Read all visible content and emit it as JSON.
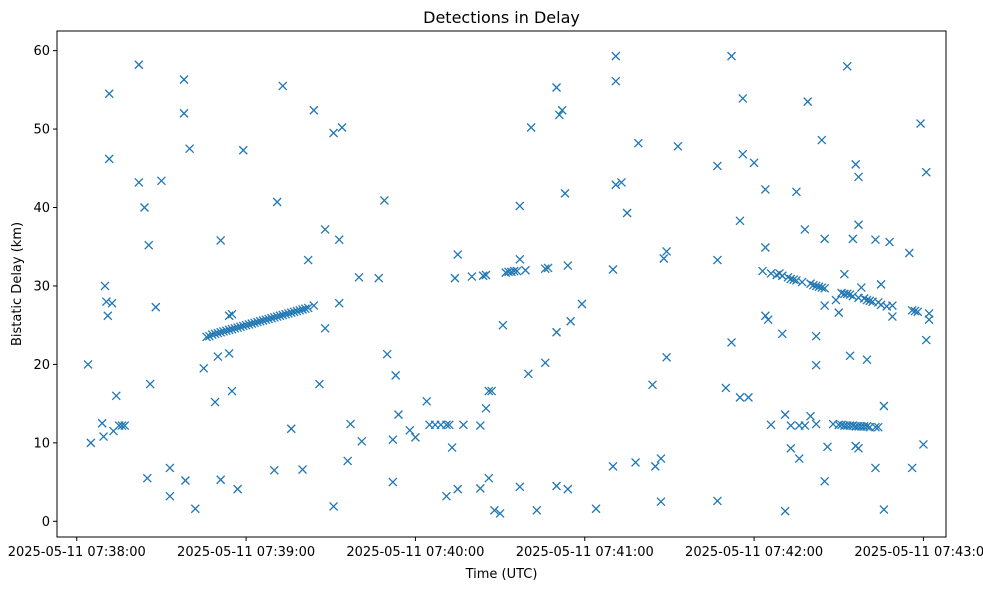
{
  "chart_data": {
    "type": "scatter",
    "title": "Detections in Delay",
    "xlabel": "Time (UTC)",
    "ylabel": "Bistatic Delay (km)",
    "x_unit": "seconds after 2025-05-11 07:38:00 UTC",
    "xlim": [
      -7,
      308
    ],
    "ylim": [
      -2,
      62.5
    ],
    "xticks": [
      {
        "value": 0,
        "label": "2025-05-11 07:38:00"
      },
      {
        "value": 60,
        "label": "2025-05-11 07:39:00"
      },
      {
        "value": 120,
        "label": "2025-05-11 07:40:00"
      },
      {
        "value": 180,
        "label": "2025-05-11 07:41:00"
      },
      {
        "value": 240,
        "label": "2025-05-11 07:42:00"
      },
      {
        "value": 300,
        "label": "2025-05-11 07:43:00"
      }
    ],
    "yticks": [
      {
        "value": 0,
        "label": "0"
      },
      {
        "value": 10,
        "label": "10"
      },
      {
        "value": 20,
        "label": "20"
      },
      {
        "value": 30,
        "label": "30"
      },
      {
        "value": 40,
        "label": "40"
      },
      {
        "value": 50,
        "label": "50"
      },
      {
        "value": 60,
        "label": "60"
      }
    ],
    "marker": "x",
    "grid": false,
    "color": "#1f77b4",
    "series": [
      {
        "name": "detections",
        "points": [
          [
            4,
            20
          ],
          [
            5,
            10
          ],
          [
            9,
            12.5
          ],
          [
            9.5,
            10.8
          ],
          [
            10,
            30
          ],
          [
            10.5,
            28
          ],
          [
            11,
            26.2
          ],
          [
            11.5,
            54.5
          ],
          [
            11.5,
            46.2
          ],
          [
            12.5,
            27.8
          ],
          [
            13,
            11.5
          ],
          [
            14,
            16
          ],
          [
            15,
            12.2
          ],
          [
            16,
            12.2
          ],
          [
            17,
            12.2
          ],
          [
            22,
            58.2
          ],
          [
            22,
            43.2
          ],
          [
            24,
            40
          ],
          [
            25,
            5.5
          ],
          [
            25.5,
            35.2
          ],
          [
            26,
            17.5
          ],
          [
            28,
            27.3
          ],
          [
            30,
            43.4
          ],
          [
            33,
            3.2
          ],
          [
            33,
            6.8
          ],
          [
            38,
            56.3
          ],
          [
            38,
            52
          ],
          [
            38.5,
            5.2
          ],
          [
            40,
            47.5
          ],
          [
            42,
            1.6
          ],
          [
            45,
            19.5
          ],
          [
            46,
            23.5
          ],
          [
            47,
            23.6
          ],
          [
            48,
            23.8
          ],
          [
            49,
            23.9
          ],
          [
            50,
            24
          ],
          [
            51,
            24.1
          ],
          [
            52,
            24.2
          ],
          [
            53,
            24.3
          ],
          [
            54,
            24.4
          ],
          [
            55,
            24.5
          ],
          [
            56,
            24.6
          ],
          [
            57,
            24.7
          ],
          [
            58,
            24.8
          ],
          [
            59,
            24.9
          ],
          [
            60,
            25
          ],
          [
            61,
            25.1
          ],
          [
            62,
            25.2
          ],
          [
            63,
            25.3
          ],
          [
            64,
            25.4
          ],
          [
            65,
            25.5
          ],
          [
            66,
            25.6
          ],
          [
            67,
            25.7
          ],
          [
            68,
            25.8
          ],
          [
            69,
            25.9
          ],
          [
            70,
            26
          ],
          [
            71,
            26.1
          ],
          [
            72,
            26.2
          ],
          [
            73,
            26.3
          ],
          [
            74,
            26.4
          ],
          [
            75,
            26.5
          ],
          [
            76,
            26.6
          ],
          [
            77,
            26.7
          ],
          [
            78,
            26.8
          ],
          [
            79,
            26.9
          ],
          [
            80,
            27
          ],
          [
            81,
            27.1
          ],
          [
            82,
            27.2
          ],
          [
            84,
            27.5
          ],
          [
            49,
            15.2
          ],
          [
            50,
            21
          ],
          [
            51,
            35.8
          ],
          [
            51,
            5.3
          ],
          [
            54,
            21.4
          ],
          [
            54,
            26.2
          ],
          [
            55,
            26.4
          ],
          [
            55,
            16.6
          ],
          [
            57,
            4.1
          ],
          [
            59,
            47.3
          ],
          [
            70,
            6.5
          ],
          [
            71,
            40.7
          ],
          [
            73,
            55.5
          ],
          [
            76,
            11.8
          ],
          [
            80,
            6.6
          ],
          [
            82,
            33.3
          ],
          [
            84,
            52.4
          ],
          [
            86,
            17.5
          ],
          [
            88,
            37.2
          ],
          [
            88,
            24.6
          ],
          [
            91,
            1.9
          ],
          [
            91,
            49.5
          ],
          [
            93,
            27.8
          ],
          [
            93,
            35.9
          ],
          [
            94,
            50.2
          ],
          [
            96,
            7.7
          ],
          [
            97,
            12.4
          ],
          [
            100,
            31.1
          ],
          [
            101,
            10.2
          ],
          [
            107,
            31
          ],
          [
            109,
            40.9
          ],
          [
            110,
            21.3
          ],
          [
            112,
            5
          ],
          [
            112,
            10.4
          ],
          [
            113,
            18.6
          ],
          [
            114,
            13.6
          ],
          [
            118,
            11.6
          ],
          [
            120,
            10.7
          ],
          [
            124,
            15.3
          ],
          [
            125,
            12.3
          ],
          [
            127,
            12.3
          ],
          [
            129,
            12.3
          ],
          [
            131,
            12.3
          ],
          [
            132,
            12.3
          ],
          [
            131,
            3.2
          ],
          [
            133,
            9.4
          ],
          [
            134,
            31
          ],
          [
            135,
            34
          ],
          [
            135,
            4.1
          ],
          [
            137,
            12.3
          ],
          [
            140,
            31.2
          ],
          [
            143,
            12.2
          ],
          [
            143,
            4.2
          ],
          [
            144,
            31.3
          ],
          [
            145,
            31.4
          ],
          [
            145,
            14.4
          ],
          [
            146,
            16.6
          ],
          [
            146,
            5.5
          ],
          [
            147,
            16.6
          ],
          [
            148,
            1.4
          ],
          [
            150,
            1
          ],
          [
            151,
            25
          ],
          [
            152,
            31.7
          ],
          [
            153,
            31.8
          ],
          [
            154,
            31.8
          ],
          [
            155,
            31.9
          ],
          [
            156,
            31.9
          ],
          [
            157,
            33.4
          ],
          [
            157,
            40.2
          ],
          [
            157,
            4.4
          ],
          [
            159,
            32
          ],
          [
            160,
            18.8
          ],
          [
            161,
            50.2
          ],
          [
            163,
            1.4
          ],
          [
            166,
            20.2
          ],
          [
            166,
            32.2
          ],
          [
            167,
            32.3
          ],
          [
            170,
            4.5
          ],
          [
            170,
            24.1
          ],
          [
            170,
            55.3
          ],
          [
            171,
            51.8
          ],
          [
            172,
            52.4
          ],
          [
            173,
            41.8
          ],
          [
            174,
            32.6
          ],
          [
            174,
            4.1
          ],
          [
            175,
            25.5
          ],
          [
            179,
            27.7
          ],
          [
            184,
            1.6
          ],
          [
            190,
            7
          ],
          [
            190,
            32.1
          ],
          [
            191,
            42.9
          ],
          [
            191,
            56.1
          ],
          [
            191,
            59.3
          ],
          [
            193,
            43.2
          ],
          [
            195,
            39.3
          ],
          [
            198,
            7.5
          ],
          [
            199,
            48.2
          ],
          [
            204,
            17.4
          ],
          [
            205,
            7
          ],
          [
            207,
            8
          ],
          [
            207,
            2.5
          ],
          [
            208,
            33.5
          ],
          [
            209,
            20.9
          ],
          [
            209,
            34.4
          ],
          [
            213,
            47.8
          ],
          [
            227,
            45.3
          ],
          [
            227,
            33.3
          ],
          [
            227,
            2.6
          ],
          [
            230,
            17
          ],
          [
            232,
            22.8
          ],
          [
            232,
            59.3
          ],
          [
            235,
            15.8
          ],
          [
            235,
            38.3
          ],
          [
            236,
            46.8
          ],
          [
            236,
            53.9
          ],
          [
            238,
            15.8
          ],
          [
            240,
            45.7
          ],
          [
            243,
            31.9
          ],
          [
            244,
            42.3
          ],
          [
            244,
            34.9
          ],
          [
            244,
            26.2
          ],
          [
            245,
            25.7
          ],
          [
            246,
            31.6
          ],
          [
            246,
            12.3
          ],
          [
            248,
            31.4
          ],
          [
            249,
            31.6
          ],
          [
            250,
            31.3
          ],
          [
            250,
            23.9
          ],
          [
            251,
            1.3
          ],
          [
            251,
            13.6
          ],
          [
            252,
            31.1
          ],
          [
            253,
            30.9
          ],
          [
            253,
            12.2
          ],
          [
            253,
            9.3
          ],
          [
            254,
            30.8
          ],
          [
            255,
            30.7
          ],
          [
            255,
            42
          ],
          [
            256,
            12.2
          ],
          [
            256,
            8
          ],
          [
            257,
            30.5
          ],
          [
            258,
            12.2
          ],
          [
            258,
            37.2
          ],
          [
            259,
            53.5
          ],
          [
            260,
            30.3
          ],
          [
            260,
            13.4
          ],
          [
            261,
            30.1
          ],
          [
            262,
            30
          ],
          [
            262,
            12.4
          ],
          [
            262,
            23.6
          ],
          [
            262,
            19.9
          ],
          [
            263,
            29.9
          ],
          [
            264,
            29.8
          ],
          [
            264,
            48.6
          ],
          [
            265,
            29.7
          ],
          [
            265,
            27.5
          ],
          [
            265,
            36
          ],
          [
            265,
            5.1
          ],
          [
            266,
            9.5
          ],
          [
            268,
            12.4
          ],
          [
            269,
            28.2
          ],
          [
            270,
            12.3
          ],
          [
            270,
            26.6
          ],
          [
            271,
            12.3
          ],
          [
            271,
            29.1
          ],
          [
            272,
            12.2
          ],
          [
            272,
            29
          ],
          [
            272,
            31.5
          ],
          [
            273,
            12.2
          ],
          [
            273,
            58
          ],
          [
            273,
            29
          ],
          [
            274,
            12.2
          ],
          [
            274,
            28.9
          ],
          [
            274,
            21.1
          ],
          [
            275,
            12.2
          ],
          [
            275,
            28.7
          ],
          [
            275,
            36
          ],
          [
            276,
            45.5
          ],
          [
            276,
            9.6
          ],
          [
            276,
            12.1
          ],
          [
            277,
            28.5
          ],
          [
            277,
            12.1
          ],
          [
            277,
            9.3
          ],
          [
            277,
            43.9
          ],
          [
            277,
            37.8
          ],
          [
            278,
            12.1
          ],
          [
            278,
            29.8
          ],
          [
            279,
            28.4
          ],
          [
            279,
            12.1
          ],
          [
            280,
            28.2
          ],
          [
            280,
            20.6
          ],
          [
            280,
            12.1
          ],
          [
            281,
            28.1
          ],
          [
            281,
            12
          ],
          [
            282,
            28
          ],
          [
            283,
            6.8
          ],
          [
            283,
            12
          ],
          [
            283,
            35.9
          ],
          [
            284,
            27.9
          ],
          [
            284,
            12
          ],
          [
            285,
            30.2
          ],
          [
            285,
            27.6
          ],
          [
            286,
            14.7
          ],
          [
            286,
            1.5
          ],
          [
            287,
            27.4
          ],
          [
            288,
            35.6
          ],
          [
            289,
            26.1
          ],
          [
            289,
            27.5
          ],
          [
            295,
            34.2
          ],
          [
            296,
            6.8
          ],
          [
            296,
            26.9
          ],
          [
            297,
            26.8
          ],
          [
            298,
            26.7
          ],
          [
            299,
            50.7
          ],
          [
            300,
            9.8
          ],
          [
            301,
            23.1
          ],
          [
            301,
            44.5
          ],
          [
            302,
            26.5
          ],
          [
            302,
            25.7
          ]
        ]
      }
    ]
  }
}
